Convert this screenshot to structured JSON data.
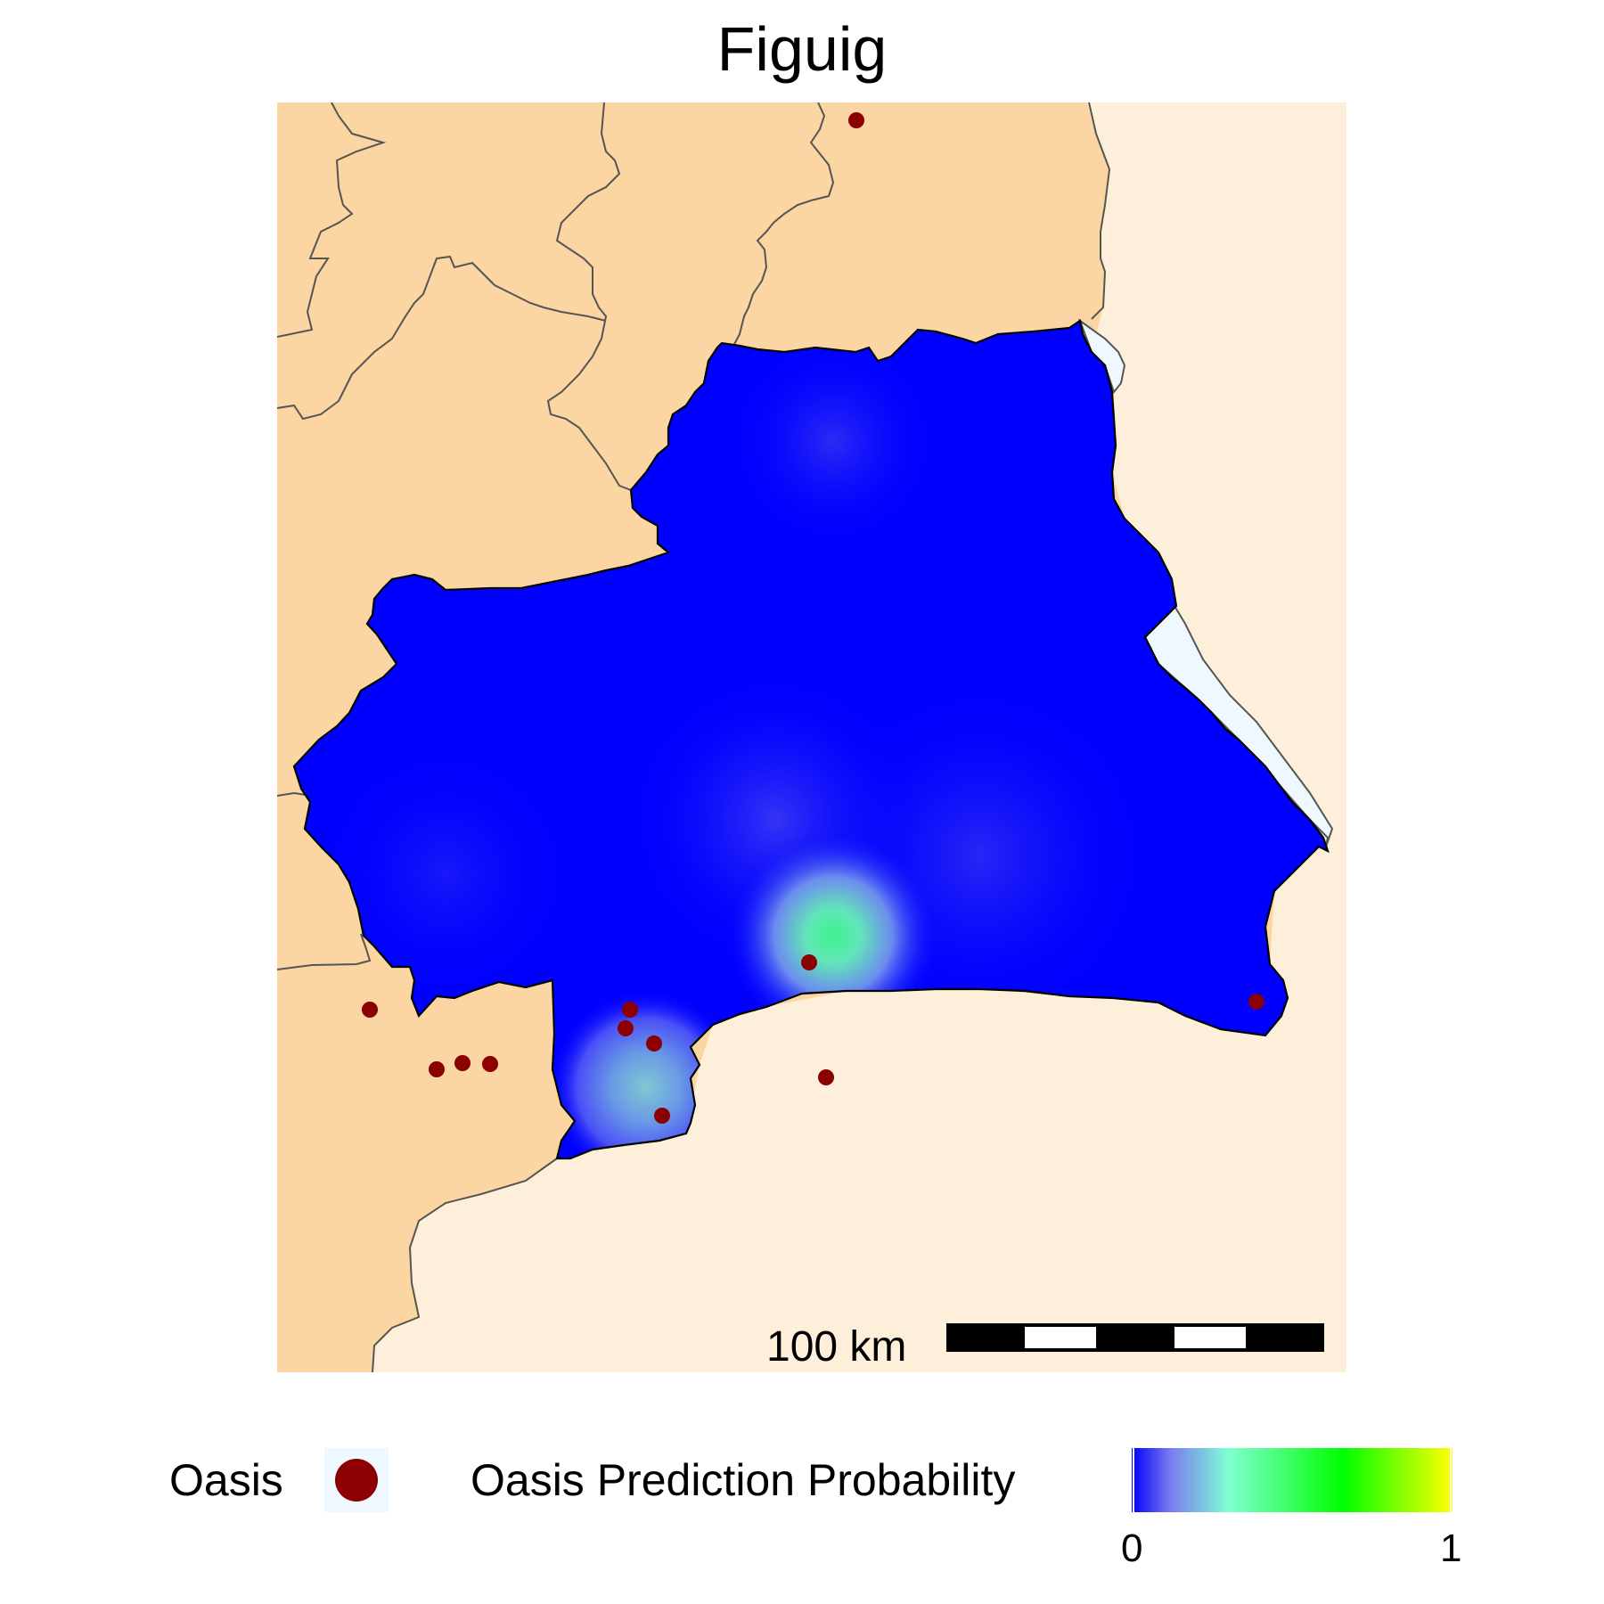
{
  "title": "Figuig",
  "scale_bar": {
    "label": "100 km",
    "segments": 5
  },
  "legend": {
    "point_label": "Oasis",
    "gradient_label": "Oasis Prediction Probability",
    "gradient_min": "0",
    "gradient_max": "1",
    "gradient_colors": [
      "#0000ff",
      "#7a7af0",
      "#7fffd4",
      "#00ff00",
      "#ffff00"
    ]
  },
  "colors": {
    "neighbor_land": "#fbd5a2",
    "desert_east_south": "#fdefd9",
    "thin_strip": "#f0f8ff",
    "region_fill": "#0000ff",
    "region_outline": "#000000",
    "border_lines": "#555555",
    "oasis_point": "#8b0000"
  },
  "prediction_hotspots": [
    {
      "name": "main",
      "peak_probability": 0.55
    },
    {
      "name": "south-west",
      "peak_probability": 0.4
    },
    {
      "name": "north",
      "peak_probability": 0.12
    },
    {
      "name": "centre",
      "peak_probability": 0.15
    }
  ]
}
